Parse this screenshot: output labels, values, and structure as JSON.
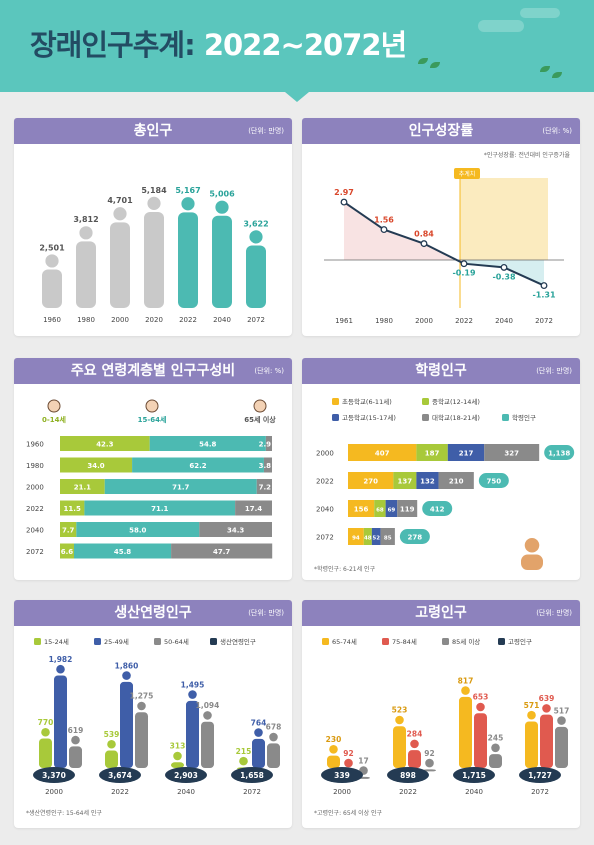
{
  "header": {
    "title_ko": "장래인구추계",
    "title_colon": ":",
    "title_years": "2022~2072년"
  },
  "panels": {
    "total": {
      "title": "총인구",
      "unit": "(단위: 만명)"
    },
    "growth": {
      "title": "인구성장률",
      "unit": "(단위: %)",
      "note": "*인구성장률: 전년대비 인구증가율",
      "tag": "추계치"
    },
    "age": {
      "title": "주요 연령계층별 인구구성비",
      "unit": "(단위: %)",
      "groups": [
        "0-14세",
        "15-64세",
        "65세 이상"
      ]
    },
    "school": {
      "title": "학령인구",
      "unit": "(단위: 만명)",
      "legend": [
        "초등학교(6-11세)",
        "중학교(12-14세)",
        "고등학교(15-17세)",
        "대학교(18-21세)",
        "학령인구"
      ],
      "note": "*학령인구: 6-21세 인구"
    },
    "working": {
      "title": "생산연령인구",
      "unit": "(단위: 만명)",
      "legend": [
        "15-24세",
        "25-49세",
        "50-64세",
        "생산연령인구"
      ],
      "note": "*생산연령인구: 15-64세 인구"
    },
    "elderly": {
      "title": "고령인구",
      "unit": "(단위: 만명)",
      "legend": [
        "65-74세",
        "75-84세",
        "85세 이상",
        "고령인구"
      ],
      "note": "*고령인구: 65세 이상 인구"
    }
  },
  "chart_data": [
    {
      "id": "total",
      "type": "bar",
      "categories": [
        "1960",
        "1980",
        "2000",
        "2020",
        "2022",
        "2040",
        "2072"
      ],
      "values": [
        2501,
        3812,
        4701,
        5184,
        5167,
        5006,
        3622
      ],
      "projected_from": "2022"
    },
    {
      "id": "growth",
      "type": "line",
      "categories": [
        "1961",
        "1980",
        "2000",
        "2022",
        "2040",
        "2072"
      ],
      "values": [
        2.97,
        1.56,
        0.84,
        -0.19,
        -0.38,
        -1.31
      ]
    },
    {
      "id": "age",
      "type": "bar",
      "stacked": true,
      "orientation": "horizontal",
      "categories": [
        "1960",
        "1980",
        "2000",
        "2022",
        "2040",
        "2072"
      ],
      "series": [
        {
          "name": "0-14세",
          "values": [
            42.3,
            34.0,
            21.1,
            11.5,
            7.7,
            6.6
          ]
        },
        {
          "name": "15-64세",
          "values": [
            54.8,
            62.2,
            71.7,
            71.1,
            58.0,
            45.8
          ]
        },
        {
          "name": "65세 이상",
          "values": [
            2.9,
            3.8,
            7.2,
            17.4,
            34.3,
            47.7
          ]
        }
      ]
    },
    {
      "id": "school",
      "type": "bar",
      "stacked": true,
      "orientation": "horizontal",
      "categories": [
        "2000",
        "2022",
        "2040",
        "2072"
      ],
      "series": [
        {
          "name": "초등학교(6-11세)",
          "values": [
            407,
            270,
            156,
            94
          ]
        },
        {
          "name": "중학교(12-14세)",
          "values": [
            187,
            137,
            68,
            48
          ]
        },
        {
          "name": "고등학교(15-17세)",
          "values": [
            217,
            132,
            69,
            52
          ]
        },
        {
          "name": "대학교(18-21세)",
          "values": [
            327,
            210,
            119,
            85
          ]
        }
      ],
      "totals": [
        1138,
        750,
        412,
        278
      ]
    },
    {
      "id": "working",
      "type": "bar",
      "categories": [
        "2000",
        "2022",
        "2040",
        "2072"
      ],
      "series": [
        {
          "name": "15-24세",
          "values": [
            770,
            539,
            313,
            215
          ]
        },
        {
          "name": "25-49세",
          "values": [
            1982,
            1860,
            1495,
            764
          ]
        },
        {
          "name": "50-64세",
          "values": [
            619,
            1275,
            1094,
            678
          ]
        }
      ],
      "totals": [
        3370,
        3674,
        2903,
        1658
      ]
    },
    {
      "id": "elderly",
      "type": "bar",
      "categories": [
        "2000",
        "2022",
        "2040",
        "2072"
      ],
      "series": [
        {
          "name": "65-74세",
          "values": [
            230,
            523,
            817,
            571
          ]
        },
        {
          "name": "75-84세",
          "values": [
            92,
            284,
            653,
            639
          ]
        },
        {
          "name": "85세 이상",
          "values": [
            17,
            92,
            245,
            517
          ]
        }
      ],
      "totals": [
        339,
        898,
        1715,
        1727
      ]
    }
  ],
  "colors": {
    "teal": "#4cbab2",
    "gray": "#c9c9c9",
    "purple": "#8d82bd",
    "navy": "#243b53",
    "lime": "#a8c93a",
    "blue": "#3f5ea8",
    "darkgray": "#8a8a8a",
    "yellow": "#f5b920",
    "red": "#e05a4f",
    "red_label": "#d9472b",
    "teal_label": "#2aa39a"
  }
}
